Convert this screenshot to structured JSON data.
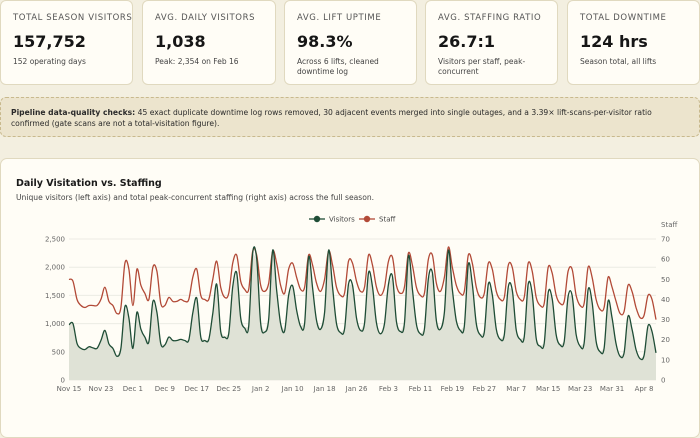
{
  "kpis": [
    {
      "label": "Total Season Visitors",
      "value": "157,752",
      "sub": "152 operating days"
    },
    {
      "label": "Avg. Daily Visitors",
      "value": "1,038",
      "sub": "Peak: 2,354 on Feb 16"
    },
    {
      "label": "Avg. Lift Uptime",
      "value": "98.3%",
      "sub": "Across 6 lifts, cleaned downtime log"
    },
    {
      "label": "Avg. Staffing Ratio",
      "value": "26.7:1",
      "sub": "Visitors per staff, peak-concurrent"
    },
    {
      "label": "Total Downtime",
      "value": "124 hrs",
      "sub": "Season total, all lifts"
    }
  ],
  "notice": {
    "lead": "Pipeline data-quality checks:",
    "text": " 45 exact duplicate downtime log rows removed, 30 adjacent events merged into single outages, and a 3.39× lift-scans-per-visitor ratio confirmed (gate scans are not a total-visitation figure)."
  },
  "panel": {
    "title": "Daily Visitation vs. Staffing",
    "subtitle": "Unique visitors (left axis) and total peak-concurrent staffing (right axis) across the full season."
  },
  "chart_data": {
    "type": "line",
    "legend": [
      "Visitors",
      "Staff"
    ],
    "legend_position": "top-center",
    "colors": {
      "visitors": "#1f4d36",
      "staff": "#b24a37",
      "area": "#dfe2d6",
      "grid": "#ecebe4"
    },
    "y_left_ticks": [
      "0",
      "500",
      "1,000",
      "1,500",
      "2,000",
      "2,500"
    ],
    "y_right_label": "Staff",
    "y_right_ticks": [
      "0",
      "10",
      "20",
      "30",
      "40",
      "50",
      "60",
      "70"
    ],
    "y_left_range": [
      0,
      2500
    ],
    "y_right_range": [
      0,
      70
    ],
    "x_ticks": [
      "Nov 15",
      "Nov 23",
      "Dec 1",
      "Dec 9",
      "Dec 17",
      "Dec 25",
      "Jan 2",
      "Jan 10",
      "Jan 18",
      "Jan 26",
      "Feb 3",
      "Feb 11",
      "Feb 19",
      "Feb 27",
      "Mar 7",
      "Mar 15",
      "Mar 23",
      "Mar 31",
      "Apr 8"
    ],
    "grid": true,
    "visitors": [
      980,
      1000,
      650,
      560,
      540,
      590,
      570,
      560,
      700,
      880,
      640,
      560,
      420,
      560,
      1300,
      1100,
      560,
      1200,
      900,
      760,
      680,
      1390,
      1200,
      640,
      620,
      760,
      700,
      700,
      720,
      700,
      710,
      1190,
      1450,
      760,
      700,
      720,
      1180,
      1700,
      860,
      760,
      820,
      1650,
      1900,
      1100,
      920,
      950,
      2250,
      2150,
      1000,
      850,
      1080,
      2300,
      1600,
      1000,
      870,
      1500,
      1670,
      1240,
      950,
      1000,
      2180,
      1630,
      1050,
      900,
      1200,
      2300,
      1640,
      1000,
      840,
      900,
      1700,
      1680,
      1100,
      880,
      1000,
      1900,
      1650,
      1010,
      820,
      1000,
      1700,
      1840,
      1040,
      860,
      1000,
      2200,
      1610,
      990,
      820,
      900,
      1800,
      1900,
      1050,
      900,
      1200,
      2300,
      1610,
      1050,
      880,
      950,
      2050,
      1700,
      1000,
      800,
      850,
      1700,
      1510,
      900,
      720,
      800,
      1650,
      1600,
      890,
      720,
      760,
      1700,
      1530,
      740,
      600,
      650,
      1550,
      1440,
      800,
      620,
      680,
      1480,
      1500,
      810,
      600,
      650,
      1600,
      1380,
      690,
      500,
      560,
      1400,
      1100,
      640,
      420,
      480,
      1130,
      900,
      540,
      380,
      430,
      960,
      860,
      480
    ],
    "staff": [
      50,
      49,
      40,
      37,
      36,
      37,
      37,
      37,
      40,
      46,
      39,
      37,
      33,
      36,
      58,
      55,
      37,
      55,
      47,
      43,
      40,
      56,
      54,
      38,
      37,
      41,
      39,
      39,
      40,
      39,
      40,
      51,
      55,
      42,
      40,
      40,
      50,
      59,
      46,
      41,
      43,
      58,
      62,
      49,
      45,
      45,
      64,
      62,
      47,
      44,
      48,
      64,
      58,
      47,
      43,
      55,
      58,
      51,
      45,
      46,
      62,
      57,
      48,
      44,
      50,
      64,
      57,
      46,
      42,
      43,
      59,
      58,
      49,
      44,
      46,
      62,
      57,
      46,
      42,
      46,
      59,
      61,
      47,
      43,
      46,
      63,
      57,
      46,
      42,
      43,
      60,
      62,
      48,
      44,
      51,
      66,
      56,
      47,
      43,
      44,
      62,
      58,
      46,
      41,
      43,
      58,
      55,
      44,
      40,
      41,
      57,
      56,
      44,
      40,
      41,
      58,
      54,
      41,
      37,
      38,
      56,
      53,
      42,
      38,
      39,
      54,
      55,
      42,
      37,
      38,
      56,
      51,
      40,
      35,
      36,
      51,
      46,
      39,
      33,
      34,
      47,
      44,
      36,
      31,
      32,
      42,
      40,
      30
    ]
  }
}
